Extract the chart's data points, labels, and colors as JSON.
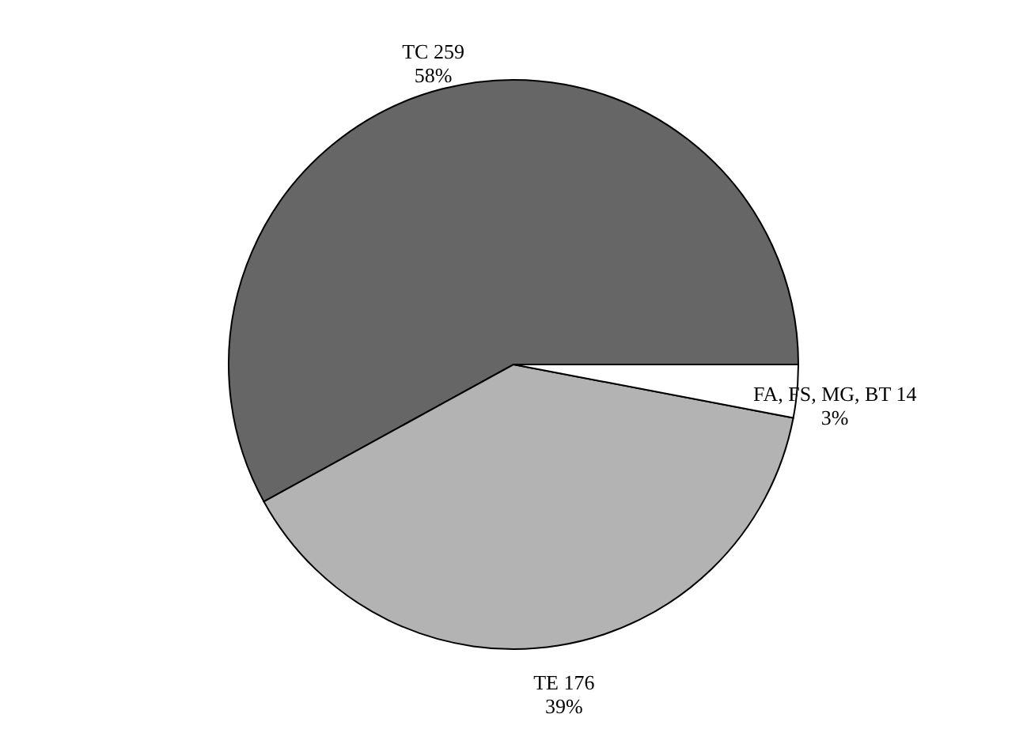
{
  "chart_data": {
    "type": "pie",
    "categories": [
      "TC 259",
      "TE 176",
      "FA, FS, MG, BT 14"
    ],
    "values": [
      58,
      39,
      3
    ],
    "value_labels": [
      "58%",
      "39%",
      "3%"
    ],
    "colors": [
      "#666666",
      "#b3b3b3",
      "#ffffff"
    ]
  }
}
